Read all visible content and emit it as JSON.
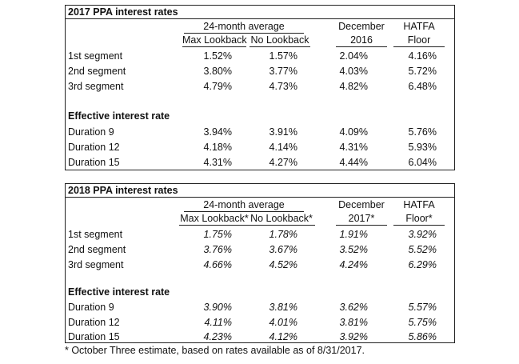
{
  "tables": [
    {
      "title": "2017 PPA interest rates",
      "header": {
        "group": "24-month average",
        "max": "Max Lookback",
        "nolb": "No Lookback",
        "dec1": "December",
        "dec2": "2016",
        "hat1": "HATFA",
        "hat2": "Floor"
      },
      "segments": [
        {
          "label": "1st segment",
          "max": "1.52%",
          "nolb": "1.57%",
          "dec": "2.04%",
          "hatfa": "4.16%"
        },
        {
          "label": "2nd segment",
          "max": "3.80%",
          "nolb": "3.77%",
          "dec": "4.03%",
          "hatfa": "5.72%"
        },
        {
          "label": "3rd segment",
          "max": "4.79%",
          "nolb": "4.73%",
          "dec": "4.82%",
          "hatfa": "6.48%"
        }
      ],
      "effective_title": "Effective interest rate",
      "durations": [
        {
          "label": "Duration 9",
          "max": "3.94%",
          "nolb": "3.91%",
          "dec": "4.09%",
          "hatfa": "5.76%"
        },
        {
          "label": "Duration 12",
          "max": "4.18%",
          "nolb": "4.14%",
          "dec": "4.31%",
          "hatfa": "5.93%"
        },
        {
          "label": "Duration 15",
          "max": "4.31%",
          "nolb": "4.27%",
          "dec": "4.44%",
          "hatfa": "6.04%"
        }
      ]
    },
    {
      "title": "2018 PPA interest rates",
      "header": {
        "group": "24-month average",
        "max": "Max Lookback*",
        "nolb": "No Lookback*",
        "dec1": "December",
        "dec2": "2017*",
        "hat1": "HATFA",
        "hat2": "Floor*"
      },
      "segments": [
        {
          "label": "1st segment",
          "max": "1.75%",
          "nolb": "1.78%",
          "dec": "1.91%",
          "hatfa": "3.92%"
        },
        {
          "label": "2nd segment",
          "max": "3.76%",
          "nolb": "3.67%",
          "dec": "3.52%",
          "hatfa": "5.52%"
        },
        {
          "label": "3rd segment",
          "max": "4.66%",
          "nolb": "4.52%",
          "dec": "4.24%",
          "hatfa": "6.29%"
        }
      ],
      "effective_title": "Effective interest rate",
      "durations": [
        {
          "label": "Duration 9",
          "max": "3.90%",
          "nolb": "3.81%",
          "dec": "3.62%",
          "hatfa": "5.57%"
        },
        {
          "label": "Duration 12",
          "max": "4.11%",
          "nolb": "4.01%",
          "dec": "3.81%",
          "hatfa": "5.75%"
        },
        {
          "label": "Duration 15",
          "max": "4.23%",
          "nolb": "4.12%",
          "dec": "3.92%",
          "hatfa": "5.86%"
        }
      ]
    }
  ],
  "footnote": "* October Three estimate, based on rates available as of 8/31/2017."
}
